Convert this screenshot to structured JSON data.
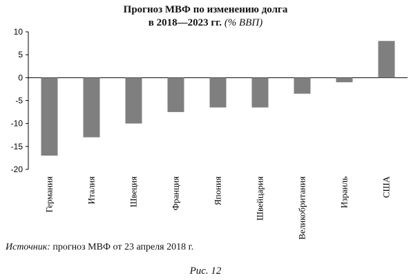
{
  "chart_data": {
    "type": "bar",
    "title_line1": "Прогноз МВФ по изменению долга",
    "title_line2_main": "в 2018—2023 гг.",
    "title_line2_unit": "(% ВВП)",
    "categories": [
      "Германия",
      "Италия",
      "Швеция",
      "Франция",
      "Япония",
      "Швейцария",
      "Великобритания",
      "Израиль",
      "США"
    ],
    "values": [
      -17,
      -13,
      -10,
      -7.5,
      -6.5,
      -6.5,
      -3.5,
      -1,
      8
    ],
    "ylim": [
      -20,
      10
    ],
    "yticks": [
      10,
      5,
      0,
      -5,
      -10,
      -15,
      -20
    ],
    "bar_color": "#7f7f7f",
    "grid": false
  },
  "source": {
    "label": "Источник:",
    "text": " прогноз МВФ от 23 апреля 2018 г."
  },
  "caption": "Рис. 12"
}
